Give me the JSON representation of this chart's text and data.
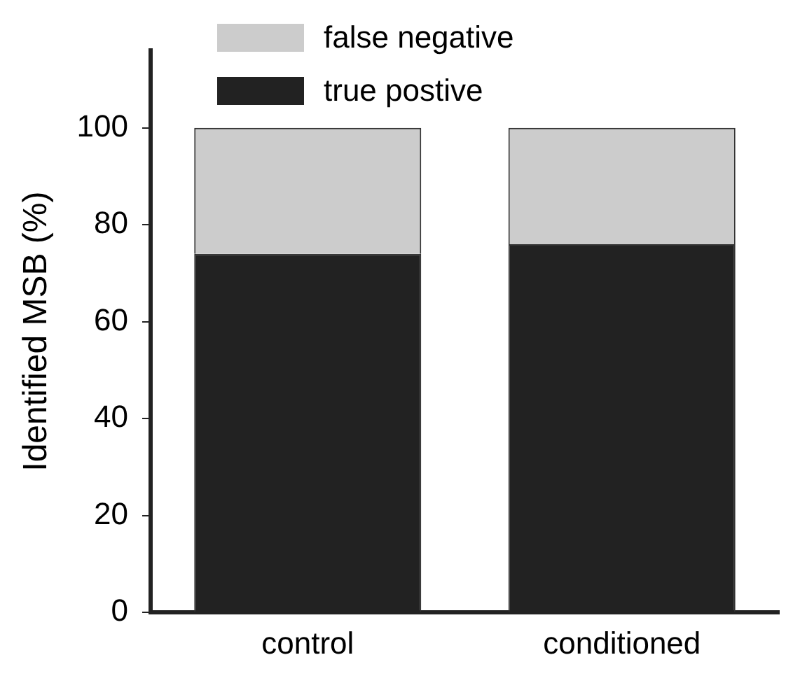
{
  "chart_data": {
    "type": "bar",
    "categories": [
      "control",
      "conditioned"
    ],
    "stacked": true,
    "ylabel": "Identified MSB (%)",
    "ylim": [
      0,
      116
    ],
    "yticks": [
      0,
      20,
      40,
      60,
      80,
      100
    ],
    "grid": false,
    "legend": "top left",
    "series": [
      {
        "name": "true postive",
        "color": "#222222",
        "values": [
          74,
          76
        ]
      },
      {
        "name": "false negative",
        "color": "#cccccc",
        "values": [
          26,
          24
        ]
      }
    ]
  }
}
